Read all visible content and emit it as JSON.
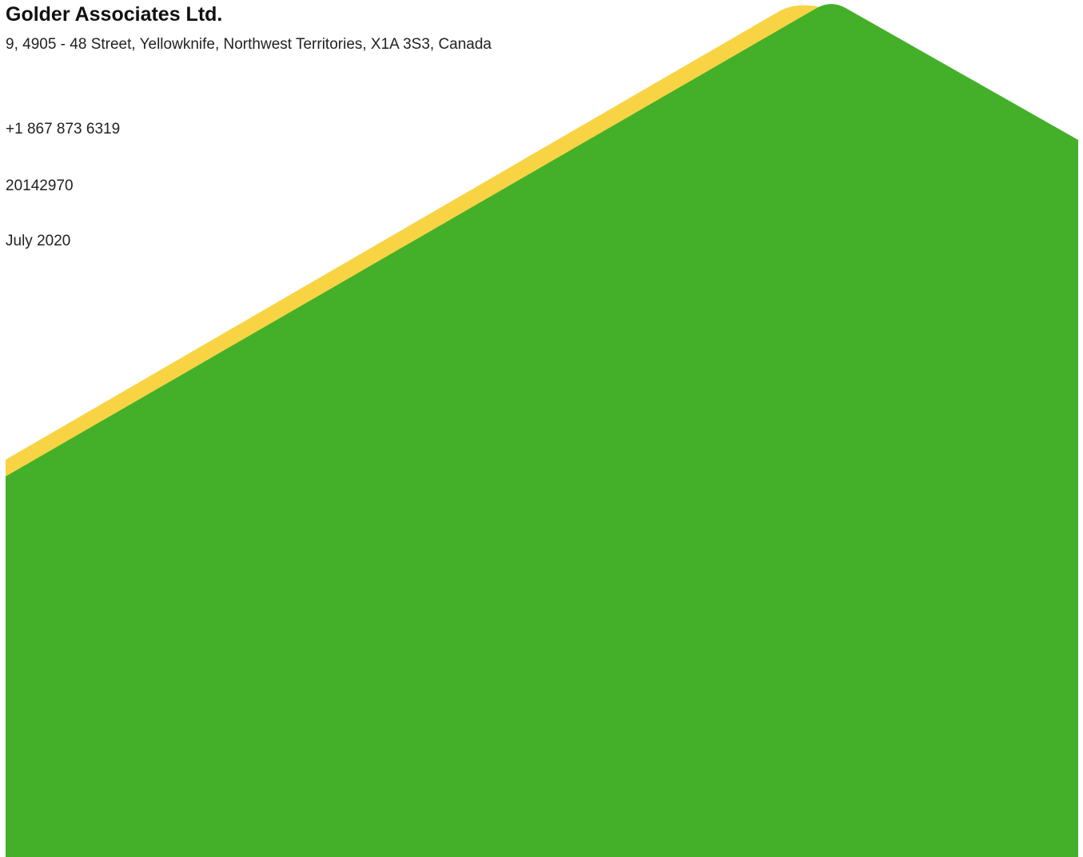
{
  "document": {
    "company_name": "Golder Associates Ltd.",
    "address": "9, 4905 - 48 Street, Yellowknife, Northwest Territories, X1A 3S3, Canada",
    "phone": "+1 867 873 6319",
    "project_number": "20142970",
    "date": "July 2020"
  },
  "colors": {
    "green": "#44B02A",
    "yellow": "#F8D445",
    "background": "#FFFFFF"
  }
}
